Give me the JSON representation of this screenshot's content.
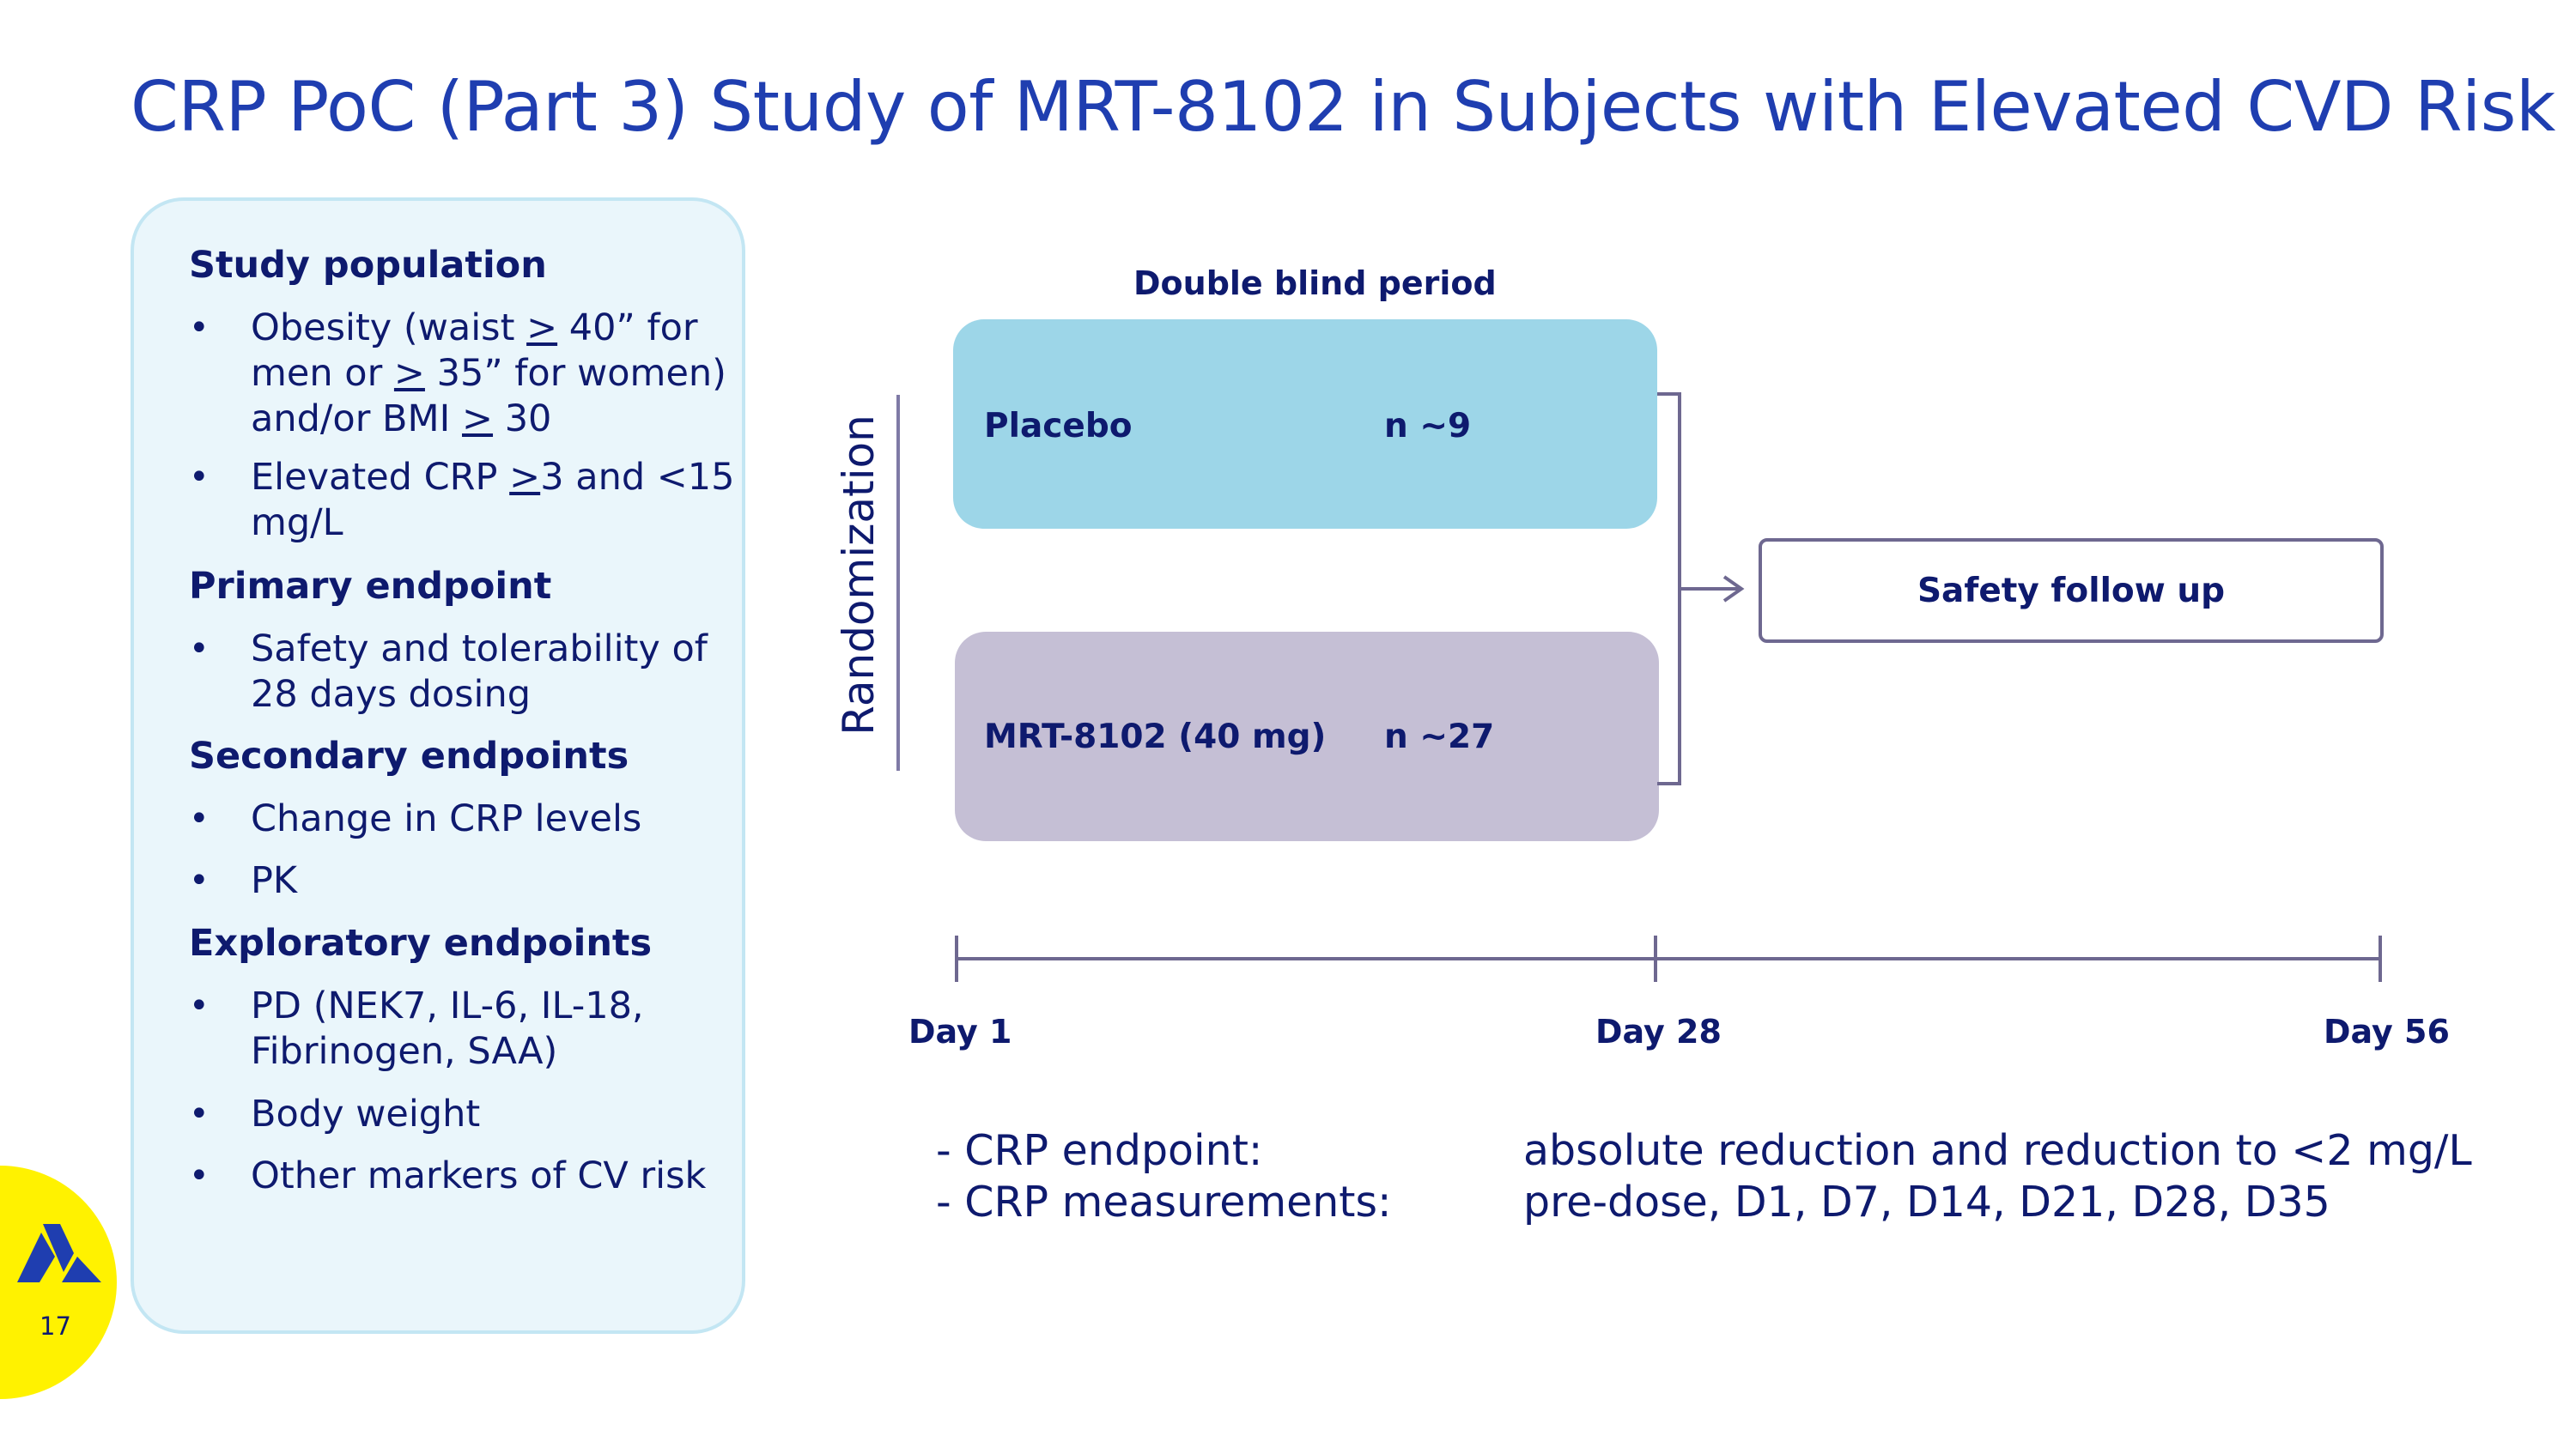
{
  "slide": {
    "title": "CRP PoC (Part 3) Study of MRT-8102 in Subjects with Elevated CVD Risk",
    "page_number": "17"
  },
  "panel": {
    "study_population": {
      "heading": "Study population",
      "item1": {
        "a": "Obesity (waist ",
        "b": ">",
        "c": " 40” for men or ",
        "d": ">",
        "e": " 35” for women) and/or BMI ",
        "f": ">",
        "g": " 30"
      },
      "item2": {
        "a": "Elevated CRP ",
        "b": ">",
        "c": "3 and <15 mg/L"
      }
    },
    "primary_endpoint": {
      "heading": "Primary endpoint",
      "items": [
        "Safety and tolerability of 28 days dosing"
      ]
    },
    "secondary_endpoints": {
      "heading": "Secondary endpoints",
      "items": [
        "Change in CRP levels",
        "PK"
      ]
    },
    "exploratory_endpoints": {
      "heading": "Exploratory endpoints",
      "items": [
        "PD (NEK7, IL-6, IL-18, Fibrinogen, SAA)",
        "Body weight",
        "Other markers of CV risk"
      ]
    },
    "bullet": "•"
  },
  "diagram": {
    "double_blind_label": "Double blind period",
    "randomization_label": "Randomization",
    "placebo": {
      "label": "Placebo",
      "n": "n ~9"
    },
    "drug": {
      "label": "MRT-8102 (40 mg)",
      "n": "n ~27"
    },
    "safety_follow_up": "Safety follow up",
    "timeline": {
      "day1": "Day 1",
      "day28": "Day 28",
      "day56": "Day 56"
    }
  },
  "notes": {
    "endpoint_label": "- CRP endpoint:",
    "endpoint_value": "absolute reduction and reduction to <2 mg/L",
    "measurements_label": "- CRP measurements:",
    "measurements_value": "pre-dose, D1, D7, D14, D21, D28, D35"
  },
  "colors": {
    "title": "#1f3eb0",
    "text": "#0e1a6e",
    "panel_bg": "#eaf6fb",
    "panel_border": "#c3e6f3",
    "placebo": "#9dd6e8",
    "drug": "#c5bfd5",
    "accent_yellow": "#fff200",
    "line": "#6e6890"
  }
}
